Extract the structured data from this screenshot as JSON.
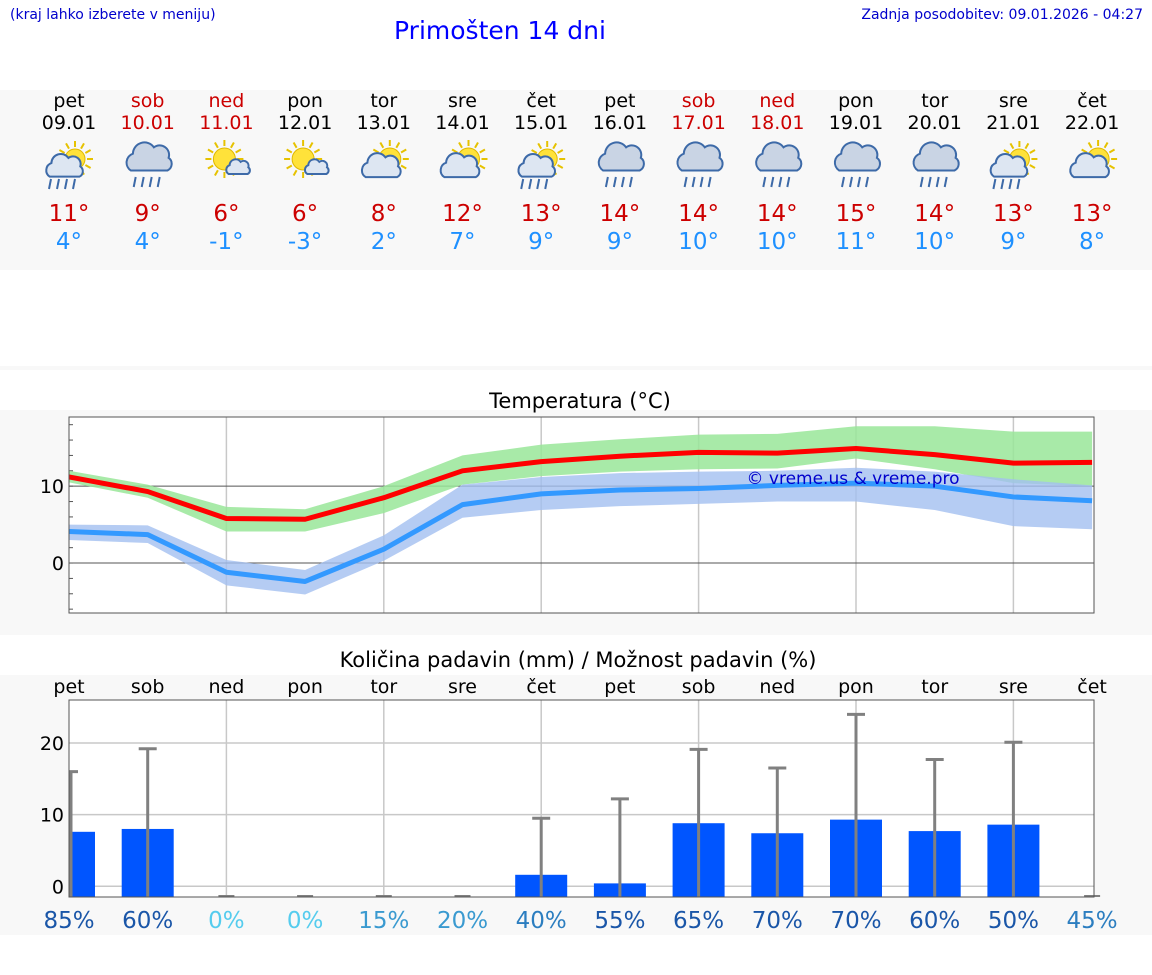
{
  "header": {
    "hint": "(kraj lahko izberete v meniju)",
    "title": "Primošten 14 dni",
    "updated": "Zadnja posodobitev: 09.01.2026 - 04:27"
  },
  "colors": {
    "weekday": "#000000",
    "weekend": "#cc0000",
    "tmax": "#cc0000",
    "tmin": "#1e90ff",
    "max_line": "#ff0000",
    "min_line": "#3399ff",
    "max_band": "#99e699",
    "min_band": "#a3bff0",
    "bar": "#0055ff",
    "whisker": "#808080",
    "watermark": "#0000cc"
  },
  "days": [
    {
      "name": "pet",
      "date": "09.01",
      "weekend": false,
      "icon": "sun-cloud-rain-icon",
      "tmax": "11°",
      "tmin": "4°"
    },
    {
      "name": "sob",
      "date": "10.01",
      "weekend": true,
      "icon": "cloud-rain-icon",
      "tmax": "9°",
      "tmin": "4°"
    },
    {
      "name": "ned",
      "date": "11.01",
      "weekend": true,
      "icon": "sun-small-cloud-icon",
      "tmax": "6°",
      "tmin": "-1°"
    },
    {
      "name": "pon",
      "date": "12.01",
      "weekend": false,
      "icon": "sun-small-cloud-icon",
      "tmax": "6°",
      "tmin": "-3°"
    },
    {
      "name": "tor",
      "date": "13.01",
      "weekend": false,
      "icon": "sun-cloud-icon",
      "tmax": "8°",
      "tmin": "2°"
    },
    {
      "name": "sre",
      "date": "14.01",
      "weekend": false,
      "icon": "sun-cloud-icon",
      "tmax": "12°",
      "tmin": "7°"
    },
    {
      "name": "čet",
      "date": "15.01",
      "weekend": false,
      "icon": "sun-cloud-rain-icon",
      "tmax": "13°",
      "tmin": "9°"
    },
    {
      "name": "pet",
      "date": "16.01",
      "weekend": false,
      "icon": "cloud-rain-icon",
      "tmax": "14°",
      "tmin": "9°"
    },
    {
      "name": "sob",
      "date": "17.01",
      "weekend": true,
      "icon": "cloud-rain-icon",
      "tmax": "14°",
      "tmin": "10°"
    },
    {
      "name": "ned",
      "date": "18.01",
      "weekend": true,
      "icon": "cloud-rain-icon",
      "tmax": "14°",
      "tmin": "10°"
    },
    {
      "name": "pon",
      "date": "19.01",
      "weekend": false,
      "icon": "cloud-rain-icon",
      "tmax": "15°",
      "tmin": "11°"
    },
    {
      "name": "tor",
      "date": "20.01",
      "weekend": false,
      "icon": "cloud-rain-icon",
      "tmax": "14°",
      "tmin": "10°"
    },
    {
      "name": "sre",
      "date": "21.01",
      "weekend": false,
      "icon": "sun-cloud-rain-icon",
      "tmax": "13°",
      "tmin": "9°"
    },
    {
      "name": "čet",
      "date": "22.01",
      "weekend": false,
      "icon": "sun-cloud-icon",
      "tmax": "13°",
      "tmin": "8°"
    }
  ],
  "chart_data": [
    {
      "type": "line",
      "title": "Temperatura (°C)",
      "watermark": "© vreme.us & vreme.pro",
      "y_ticks": [
        0,
        10
      ],
      "ylim": [
        -6.5,
        19
      ],
      "series": [
        {
          "name": "max",
          "values": [
            11.2,
            9.3,
            5.8,
            5.7,
            8.5,
            12.0,
            13.2,
            13.9,
            14.4,
            14.3,
            14.9,
            14.1,
            13.0,
            13.1
          ],
          "band_low": [
            10.5,
            8.5,
            4.1,
            4.1,
            6.5,
            10.2,
            11.3,
            11.9,
            12.2,
            12.3,
            13.6,
            12.2,
            10.4,
            10.0
          ],
          "band_high": [
            12.0,
            10.2,
            7.3,
            7.0,
            10.0,
            14.0,
            15.4,
            16.1,
            16.7,
            16.8,
            17.8,
            17.8,
            17.1,
            17.1
          ]
        },
        {
          "name": "min",
          "values": [
            4.1,
            3.7,
            -1.2,
            -2.4,
            1.8,
            7.6,
            9.0,
            9.5,
            9.7,
            10.1,
            10.4,
            10.0,
            8.6,
            8.1
          ],
          "band_low": [
            3.0,
            2.6,
            -2.9,
            -4.1,
            0.3,
            5.9,
            6.9,
            7.4,
            7.7,
            8.0,
            8.0,
            6.9,
            4.8,
            4.4
          ],
          "band_high": [
            5.0,
            4.9,
            0.4,
            -0.9,
            3.6,
            10.2,
            11.2,
            11.7,
            11.9,
            12.0,
            12.4,
            11.9,
            10.9,
            10.1
          ]
        }
      ]
    },
    {
      "type": "bar",
      "title": "Količina padavin (mm) / Možnost padavin (%)",
      "categories": [
        "pet",
        "sob",
        "ned",
        "pon",
        "tor",
        "sre",
        "čet",
        "pet",
        "sob",
        "ned",
        "pon",
        "tor",
        "sre",
        "čet"
      ],
      "y_ticks": [
        0,
        10,
        20
      ],
      "ylim": [
        -1.5,
        26
      ],
      "values": [
        7.6,
        8.0,
        0,
        0,
        0,
        0,
        1.6,
        0.4,
        8.8,
        7.4,
        9.3,
        7.7,
        8.6,
        0
      ],
      "whisker_max": [
        16,
        19.2,
        0,
        0,
        0,
        0,
        9.5,
        12.2,
        19.1,
        16.5,
        24,
        17.7,
        20.1,
        0
      ],
      "probability": [
        "85%",
        "60%",
        "0%",
        "0%",
        "15%",
        "20%",
        "40%",
        "55%",
        "65%",
        "70%",
        "70%",
        "60%",
        "50%",
        "45%"
      ],
      "probability_colors": [
        "#1a56a8",
        "#1a56a8",
        "#55ccee",
        "#55ccee",
        "#3a9ad0",
        "#3a9ad0",
        "#2c7ec0",
        "#1a56a8",
        "#1a56a8",
        "#1a56a8",
        "#1a56a8",
        "#1a56a8",
        "#1a56a8",
        "#2c7ec0"
      ]
    }
  ]
}
